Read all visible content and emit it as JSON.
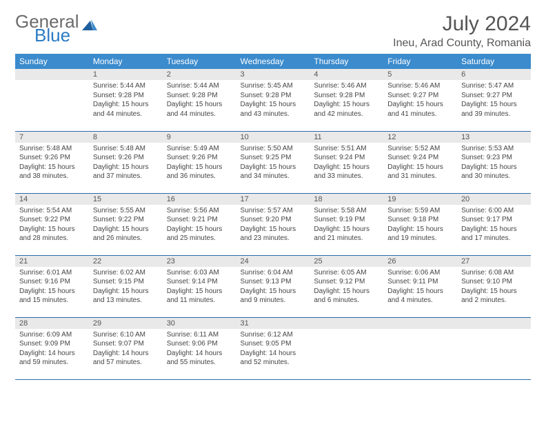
{
  "colors": {
    "header_bg": "#3b8bcd",
    "header_text": "#ffffff",
    "daynum_bg": "#e9e9e9",
    "daynum_text": "#555555",
    "body_text": "#444444",
    "row_divider": "#2a6aa8",
    "page_bg": "#ffffff",
    "logo_gray": "#6b6b6b",
    "logo_blue": "#2a7ac2",
    "title_color": "#555555"
  },
  "typography": {
    "month_title_fontsize_pt": 22,
    "location_fontsize_pt": 12,
    "dayheader_fontsize_pt": 9,
    "daynum_fontsize_pt": 8,
    "body_fontsize_pt": 7.5
  },
  "logo": {
    "text_gray": "General",
    "text_blue": "Blue"
  },
  "title": {
    "month": "July 2024",
    "location": "Ineu, Arad County, Romania"
  },
  "day_headers": [
    "Sunday",
    "Monday",
    "Tuesday",
    "Wednesday",
    "Thursday",
    "Friday",
    "Saturday"
  ],
  "calendar": {
    "type": "table",
    "columns": 7,
    "rows": 5,
    "weeks": [
      [
        null,
        {
          "n": "1",
          "sunrise": "5:44 AM",
          "sunset": "9:28 PM",
          "daylight": "15 hours and 44 minutes."
        },
        {
          "n": "2",
          "sunrise": "5:44 AM",
          "sunset": "9:28 PM",
          "daylight": "15 hours and 44 minutes."
        },
        {
          "n": "3",
          "sunrise": "5:45 AM",
          "sunset": "9:28 PM",
          "daylight": "15 hours and 43 minutes."
        },
        {
          "n": "4",
          "sunrise": "5:46 AM",
          "sunset": "9:28 PM",
          "daylight": "15 hours and 42 minutes."
        },
        {
          "n": "5",
          "sunrise": "5:46 AM",
          "sunset": "9:27 PM",
          "daylight": "15 hours and 41 minutes."
        },
        {
          "n": "6",
          "sunrise": "5:47 AM",
          "sunset": "9:27 PM",
          "daylight": "15 hours and 39 minutes."
        }
      ],
      [
        {
          "n": "7",
          "sunrise": "5:48 AM",
          "sunset": "9:26 PM",
          "daylight": "15 hours and 38 minutes."
        },
        {
          "n": "8",
          "sunrise": "5:48 AM",
          "sunset": "9:26 PM",
          "daylight": "15 hours and 37 minutes."
        },
        {
          "n": "9",
          "sunrise": "5:49 AM",
          "sunset": "9:26 PM",
          "daylight": "15 hours and 36 minutes."
        },
        {
          "n": "10",
          "sunrise": "5:50 AM",
          "sunset": "9:25 PM",
          "daylight": "15 hours and 34 minutes."
        },
        {
          "n": "11",
          "sunrise": "5:51 AM",
          "sunset": "9:24 PM",
          "daylight": "15 hours and 33 minutes."
        },
        {
          "n": "12",
          "sunrise": "5:52 AM",
          "sunset": "9:24 PM",
          "daylight": "15 hours and 31 minutes."
        },
        {
          "n": "13",
          "sunrise": "5:53 AM",
          "sunset": "9:23 PM",
          "daylight": "15 hours and 30 minutes."
        }
      ],
      [
        {
          "n": "14",
          "sunrise": "5:54 AM",
          "sunset": "9:22 PM",
          "daylight": "15 hours and 28 minutes."
        },
        {
          "n": "15",
          "sunrise": "5:55 AM",
          "sunset": "9:22 PM",
          "daylight": "15 hours and 26 minutes."
        },
        {
          "n": "16",
          "sunrise": "5:56 AM",
          "sunset": "9:21 PM",
          "daylight": "15 hours and 25 minutes."
        },
        {
          "n": "17",
          "sunrise": "5:57 AM",
          "sunset": "9:20 PM",
          "daylight": "15 hours and 23 minutes."
        },
        {
          "n": "18",
          "sunrise": "5:58 AM",
          "sunset": "9:19 PM",
          "daylight": "15 hours and 21 minutes."
        },
        {
          "n": "19",
          "sunrise": "5:59 AM",
          "sunset": "9:18 PM",
          "daylight": "15 hours and 19 minutes."
        },
        {
          "n": "20",
          "sunrise": "6:00 AM",
          "sunset": "9:17 PM",
          "daylight": "15 hours and 17 minutes."
        }
      ],
      [
        {
          "n": "21",
          "sunrise": "6:01 AM",
          "sunset": "9:16 PM",
          "daylight": "15 hours and 15 minutes."
        },
        {
          "n": "22",
          "sunrise": "6:02 AM",
          "sunset": "9:15 PM",
          "daylight": "15 hours and 13 minutes."
        },
        {
          "n": "23",
          "sunrise": "6:03 AM",
          "sunset": "9:14 PM",
          "daylight": "15 hours and 11 minutes."
        },
        {
          "n": "24",
          "sunrise": "6:04 AM",
          "sunset": "9:13 PM",
          "daylight": "15 hours and 9 minutes."
        },
        {
          "n": "25",
          "sunrise": "6:05 AM",
          "sunset": "9:12 PM",
          "daylight": "15 hours and 6 minutes."
        },
        {
          "n": "26",
          "sunrise": "6:06 AM",
          "sunset": "9:11 PM",
          "daylight": "15 hours and 4 minutes."
        },
        {
          "n": "27",
          "sunrise": "6:08 AM",
          "sunset": "9:10 PM",
          "daylight": "15 hours and 2 minutes."
        }
      ],
      [
        {
          "n": "28",
          "sunrise": "6:09 AM",
          "sunset": "9:09 PM",
          "daylight": "14 hours and 59 minutes."
        },
        {
          "n": "29",
          "sunrise": "6:10 AM",
          "sunset": "9:07 PM",
          "daylight": "14 hours and 57 minutes."
        },
        {
          "n": "30",
          "sunrise": "6:11 AM",
          "sunset": "9:06 PM",
          "daylight": "14 hours and 55 minutes."
        },
        {
          "n": "31",
          "sunrise": "6:12 AM",
          "sunset": "9:05 PM",
          "daylight": "14 hours and 52 minutes."
        },
        null,
        null,
        null
      ]
    ]
  },
  "labels": {
    "sunrise": "Sunrise:",
    "sunset": "Sunset:",
    "daylight": "Daylight:"
  }
}
